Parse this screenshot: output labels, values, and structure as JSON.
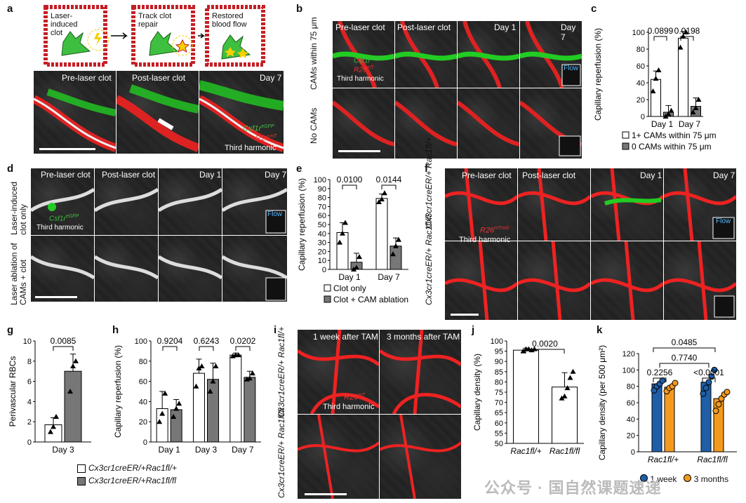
{
  "panels": {
    "a": {
      "letter": "a",
      "steps": [
        "Laser-induced clot",
        "Track clot repair",
        "Restored blood flow"
      ],
      "titles": [
        "Pre-laser clot",
        "Post-laser clot",
        "Day 7"
      ],
      "legend": [
        "Csf1r",
        "eGFP",
        "R26",
        "mT",
        "Third harmonic"
      ]
    },
    "b": {
      "letter": "b",
      "titles": [
        "Pre-laser clot",
        "Post-laser clot",
        "Day 1",
        "Day 7"
      ],
      "rows": [
        "CAMs within 75 μm",
        "No CAMs"
      ],
      "legend": [
        "Csf1r",
        "eGFP",
        "R26",
        "mT",
        "Third harmonic"
      ],
      "flow": "Flow"
    },
    "c": {
      "letter": "c",
      "ylabel": "Capillary reperfusion (%)",
      "yticks": [
        "0",
        "20",
        "40",
        "60",
        "80",
        "100"
      ],
      "cats": [
        "Day 1",
        "Day 7"
      ],
      "pvals": [
        "0.0899",
        "0.0198"
      ],
      "legend": [
        "1+ CAMs within 75 μm",
        "0 CAMs within 75 μm"
      ]
    },
    "d": {
      "letter": "d",
      "titles": [
        "Pre-laser clot",
        "Post-laser clot",
        "Day 1",
        "Day 7"
      ],
      "rows": [
        "Laser-induced clot only",
        "Laser ablation of CAMs + clot"
      ],
      "legend": [
        "Csf1r",
        "eGFP",
        "Third harmonic"
      ],
      "flow": "Flow"
    },
    "e": {
      "letter": "e",
      "ylabel": "Capillary reperfusion (%)",
      "yticks": [
        "0",
        "10",
        "20",
        "30",
        "40",
        "50",
        "60",
        "70",
        "80",
        "90",
        "100"
      ],
      "cats": [
        "Day 1",
        "Day 7"
      ],
      "pvals": [
        "0.0100",
        "0.0144"
      ],
      "legend": [
        "Clot only",
        "Clot + CAM ablation"
      ]
    },
    "f": {
      "letter": "f",
      "titles": [
        "Pre-laser clot",
        "Post-laser clot",
        "Day 1",
        "Day 7"
      ],
      "rows": [
        "Cx3cr1creER/+ Rac1fl/+",
        "Cx3cr1creER/+ Rac1fl/fl"
      ],
      "legend": [
        "R26",
        "mTmG",
        "Third harmonic"
      ],
      "flow": "Flow"
    },
    "g": {
      "letter": "g",
      "ylabel": "Perivascular RBCs",
      "yticks": [
        "0",
        "2",
        "4",
        "6",
        "8",
        "10"
      ],
      "cats": [
        "Day 3"
      ],
      "pvals": [
        "0.0085"
      ]
    },
    "h": {
      "letter": "h",
      "ylabel": "Capillary reperfusion (%)",
      "yticks": [
        "0",
        "20",
        "40",
        "60",
        "80",
        "100"
      ],
      "cats": [
        "Day 1",
        "Day 3",
        "Day 7"
      ],
      "pvals": [
        "0.9204",
        "0.6243",
        "0.0202"
      ]
    },
    "gh_legend": [
      "Cx3cr1creER/+Rac1fl/+",
      "Cx3cr1creER/+Rac1fl/fl"
    ],
    "i": {
      "letter": "i",
      "titles": [
        "1 week after TAM",
        "3 months after TAM"
      ],
      "rows": [
        "Cx3cr1creER/+ Rac1fl/+",
        "Cx3cr1creER/+ Rac1fl/fl"
      ],
      "legend": [
        "R26",
        "mT",
        "Third harmonic"
      ]
    },
    "j": {
      "letter": "j",
      "ylabel": "Capillary density (%)",
      "yticks": [
        "50",
        "55",
        "60",
        "65",
        "70",
        "75",
        "80",
        "85",
        "90",
        "95",
        "100"
      ],
      "cats": [
        "Rac1fl/+",
        "Rac1fl/fl"
      ],
      "pvals": [
        "0.0020"
      ]
    },
    "k": {
      "letter": "k",
      "ylabel": "Capillary density (per 500 μm²)",
      "yticks": [
        "0",
        "20",
        "40",
        "60",
        "80",
        "100",
        "120"
      ],
      "cats": [
        "Rac1fl/+",
        "Rac1fl/fl"
      ],
      "pvals": [
        "0.2256",
        "<0.0001",
        "0.7740",
        "0.0485"
      ],
      "legend": [
        "1 week",
        "3 months"
      ]
    }
  },
  "watermark": "公众号 · 国自然课题速递",
  "colors": {
    "blue": "#1f5fa8",
    "orange": "#f39a1e",
    "grey": "#777777",
    "green": "#3fbf3f",
    "red": "#d8262a"
  },
  "chart_data": [
    {
      "id": "c",
      "type": "bar",
      "categories": [
        "Day 1",
        "Day 7"
      ],
      "ylim": [
        0,
        100
      ],
      "ylabel": "Capillary reperfusion (%)",
      "series": [
        {
          "name": "1+ CAMs within 75 μm",
          "values": [
            44,
            93
          ],
          "err": [
            10,
            8
          ],
          "points": [
            [
              30,
              45,
              55
            ],
            [
              82,
              95,
              100
            ]
          ]
        },
        {
          "name": "0 CAMs within 75 μm",
          "values": [
            5,
            12
          ],
          "err": [
            8,
            10
          ],
          "points": [
            [
              0,
              3,
              7
            ],
            [
              5,
              10,
              20
            ]
          ]
        }
      ]
    },
    {
      "id": "e",
      "type": "bar",
      "categories": [
        "Day 1",
        "Day 7"
      ],
      "ylim": [
        0,
        100
      ],
      "ylabel": "Capillary reperfusion (%)",
      "series": [
        {
          "name": "Clot only",
          "values": [
            41,
            79
          ],
          "err": [
            11,
            5
          ],
          "points": [
            [
              30,
              40,
              52
            ],
            [
              75,
              78,
              85
            ]
          ]
        },
        {
          "name": "Clot + CAM ablation",
          "values": [
            8,
            26
          ],
          "err": [
            10,
            9
          ],
          "points": [
            [
              0,
              2,
              14
            ],
            [
              17,
              26,
              33
            ]
          ]
        }
      ]
    },
    {
      "id": "g",
      "type": "bar",
      "categories": [
        "Day 3"
      ],
      "ylim": [
        0,
        10
      ],
      "ylabel": "Perivascular RBCs",
      "series": [
        {
          "name": "Cx3cr1creER/+Rac1fl/+",
          "values": [
            1.7
          ],
          "err": [
            0.7
          ],
          "points": [
            [
              1,
              1.5,
              2.5
            ]
          ]
        },
        {
          "name": "Cx3cr1creER/+Rac1fl/fl",
          "values": [
            7
          ],
          "err": [
            1.7
          ],
          "points": [
            [
              5,
              7.5,
              8
            ]
          ]
        }
      ]
    },
    {
      "id": "h",
      "type": "bar",
      "categories": [
        "Day 1",
        "Day 3",
        "Day 7"
      ],
      "ylim": [
        0,
        100
      ],
      "ylabel": "Capillary reperfusion (%)",
      "series": [
        {
          "name": "Cx3cr1creER/+Rac1fl/+",
          "values": [
            33,
            68,
            86
          ],
          "err": [
            17,
            14,
            2
          ],
          "points": [
            [
              20,
              28,
              48
            ],
            [
              55,
              73,
              75
            ],
            [
              85,
              86,
              86
            ]
          ]
        },
        {
          "name": "Cx3cr1creER/+Rac1fl/fl",
          "values": [
            32,
            62,
            64
          ],
          "err": [
            10,
            16,
            6
          ],
          "points": [
            [
              25,
              33,
              38
            ],
            [
              50,
              60,
              75
            ],
            [
              62,
              63,
              68
            ]
          ]
        }
      ]
    },
    {
      "id": "j",
      "type": "bar",
      "categories": [
        "Rac1fl/+",
        "Rac1fl/fl"
      ],
      "ylim": [
        50,
        100
      ],
      "ylabel": "Capillary density (%)",
      "series": [
        {
          "name": "Capillary density",
          "values": [
            95.5,
            77.5
          ],
          "err": [
            1,
            7
          ],
          "points": [
            [
              95,
              96,
              96,
              95.5,
              96
            ],
            [
              72,
              73,
              77,
              82,
              85
            ]
          ]
        }
      ]
    },
    {
      "id": "k",
      "type": "bar",
      "categories": [
        "Rac1fl/+",
        "Rac1fl/fl"
      ],
      "ylim": [
        0,
        120
      ],
      "ylabel": "Capillary density (per 500 μm²)",
      "series": [
        {
          "name": "1 week",
          "values": [
            83,
            85
          ],
          "err": [
            0,
            0
          ],
          "points": [
            [
              75,
              80,
              83,
              87
            ],
            [
              71,
              78,
              85,
              92,
              100
            ]
          ]
        },
        {
          "name": "3 months",
          "values": [
            79,
            65
          ],
          "err": [
            0,
            0
          ],
          "points": [
            [
              74,
              78,
              80,
              84
            ],
            [
              50,
              58,
              65,
              70,
              73
            ]
          ]
        }
      ]
    }
  ]
}
